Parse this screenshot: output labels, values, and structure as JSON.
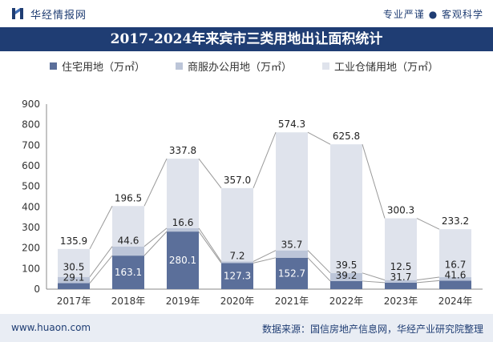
{
  "header": {
    "brand": "华经情报网",
    "tagline": "专业严谨 ● 客观科学"
  },
  "chart_data": {
    "type": "bar",
    "title": "2017-2024年来宾市三类用地出让面积统计",
    "categories": [
      "2017年",
      "2018年",
      "2019年",
      "2020年",
      "2021年",
      "2022年",
      "2023年",
      "2024年"
    ],
    "ylim": [
      0,
      900
    ],
    "yticks": [
      0,
      100,
      200,
      300,
      400,
      500,
      600,
      700,
      800,
      900
    ],
    "stacked": true,
    "legend_position": "top",
    "series": [
      {
        "name": "住宅用地（万㎡）",
        "values": [
          29.1,
          163.1,
          280.1,
          127.3,
          152.7,
          39.2,
          31.7,
          41.6
        ],
        "color": "#5b6f9a"
      },
      {
        "name": "商服办公用地（万㎡）",
        "values": [
          30.5,
          44.6,
          16.6,
          7.2,
          35.7,
          39.5,
          12.5,
          16.7
        ],
        "color": "#bcc5d8"
      },
      {
        "name": "工业仓储用地（万㎡）",
        "values": [
          135.9,
          196.5,
          337.8,
          357.0,
          574.3,
          625.8,
          300.3,
          233.2
        ],
        "color": "#dfe3ec"
      }
    ]
  },
  "footer": {
    "site": "www.huaon.com",
    "source": "数据来源：国信房地产信息网，华经产业研究院整理"
  }
}
